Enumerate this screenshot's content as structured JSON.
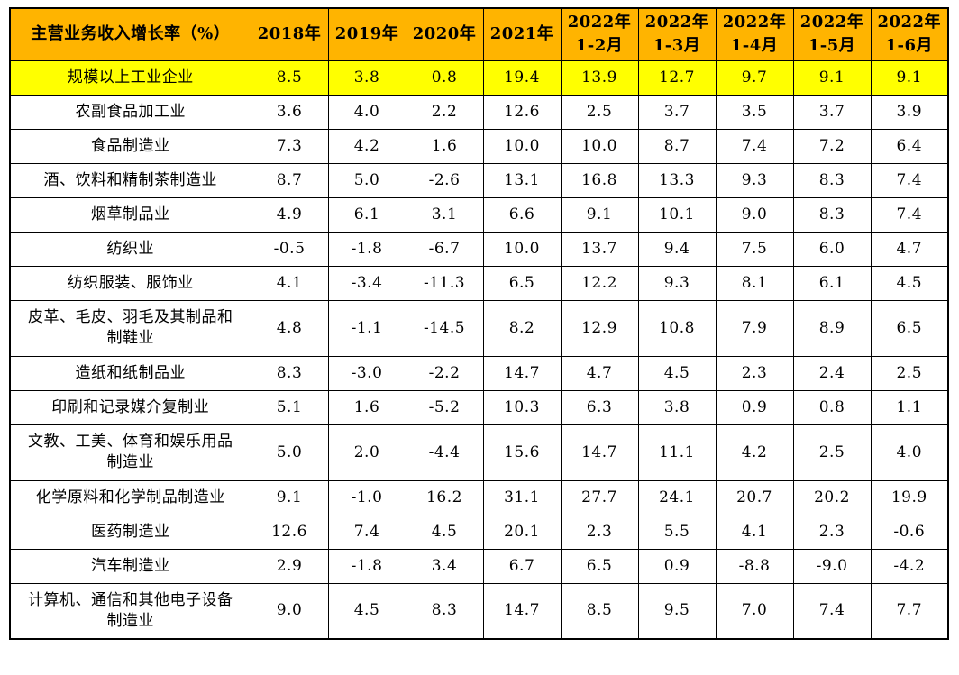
{
  "colors": {
    "header_bg": "#FFB400",
    "highlight_bg": "#FFFF00",
    "border": "#000000",
    "text": "#000000",
    "page_bg": "#FFFFFF"
  },
  "chart_data": {
    "type": "table",
    "title": "主营业务收入增长率（%）",
    "columns": [
      {
        "line1": "2018年",
        "line2": ""
      },
      {
        "line1": "2019年",
        "line2": ""
      },
      {
        "line1": "2020年",
        "line2": ""
      },
      {
        "line1": "2021年",
        "line2": ""
      },
      {
        "line1": "2022年",
        "line2": "1-2月"
      },
      {
        "line1": "2022年",
        "line2": "1-3月"
      },
      {
        "line1": "2022年",
        "line2": "1-4月"
      },
      {
        "line1": "2022年",
        "line2": "1-5月"
      },
      {
        "line1": "2022年",
        "line2": "1-6月"
      }
    ],
    "rows": [
      {
        "label": "规模以上工业企业",
        "highlight": true,
        "tall": false,
        "values": [
          "8.5",
          "3.8",
          "0.8",
          "19.4",
          "13.9",
          "12.7",
          "9.7",
          "9.1",
          "9.1"
        ]
      },
      {
        "label": "农副食品加工业",
        "highlight": false,
        "tall": false,
        "values": [
          "3.6",
          "4.0",
          "2.2",
          "12.6",
          "2.5",
          "3.7",
          "3.5",
          "3.7",
          "3.9"
        ]
      },
      {
        "label": "食品制造业",
        "highlight": false,
        "tall": false,
        "values": [
          "7.3",
          "4.2",
          "1.6",
          "10.0",
          "10.0",
          "8.7",
          "7.4",
          "7.2",
          "6.4"
        ]
      },
      {
        "label": "酒、饮料和精制茶制造业",
        "highlight": false,
        "tall": false,
        "values": [
          "8.7",
          "5.0",
          "-2.6",
          "13.1",
          "16.8",
          "13.3",
          "9.3",
          "8.3",
          "7.4"
        ]
      },
      {
        "label": "烟草制品业",
        "highlight": false,
        "tall": false,
        "values": [
          "4.9",
          "6.1",
          "3.1",
          "6.6",
          "9.1",
          "10.1",
          "9.0",
          "8.3",
          "7.4"
        ]
      },
      {
        "label": "纺织业",
        "highlight": false,
        "tall": false,
        "values": [
          "-0.5",
          "-1.8",
          "-6.7",
          "10.0",
          "13.7",
          "9.4",
          "7.5",
          "6.0",
          "4.7"
        ]
      },
      {
        "label": "纺织服装、服饰业",
        "highlight": false,
        "tall": false,
        "values": [
          "4.1",
          "-3.4",
          "-11.3",
          "6.5",
          "12.2",
          "9.3",
          "8.1",
          "6.1",
          "4.5"
        ]
      },
      {
        "label": "皮革、毛皮、羽毛及其制品和\n制鞋业",
        "highlight": false,
        "tall": true,
        "values": [
          "4.8",
          "-1.1",
          "-14.5",
          "8.2",
          "12.9",
          "10.8",
          "7.9",
          "8.9",
          "6.5"
        ]
      },
      {
        "label": "造纸和纸制品业",
        "highlight": false,
        "tall": false,
        "values": [
          "8.3",
          "-3.0",
          "-2.2",
          "14.7",
          "4.7",
          "4.5",
          "2.3",
          "2.4",
          "2.5"
        ]
      },
      {
        "label": "印刷和记录媒介复制业",
        "highlight": false,
        "tall": false,
        "values": [
          "5.1",
          "1.6",
          "-5.2",
          "10.3",
          "6.3",
          "3.8",
          "0.9",
          "0.8",
          "1.1"
        ]
      },
      {
        "label": "文教、工美、体育和娱乐用品\n制造业",
        "highlight": false,
        "tall": true,
        "values": [
          "5.0",
          "2.0",
          "-4.4",
          "15.6",
          "14.7",
          "11.1",
          "4.2",
          "2.5",
          "4.0"
        ]
      },
      {
        "label": "化学原料和化学制品制造业",
        "highlight": false,
        "tall": false,
        "values": [
          "9.1",
          "-1.0",
          "16.2",
          "31.1",
          "27.7",
          "24.1",
          "20.7",
          "20.2",
          "19.9"
        ]
      },
      {
        "label": "医药制造业",
        "highlight": false,
        "tall": false,
        "values": [
          "12.6",
          "7.4",
          "4.5",
          "20.1",
          "2.3",
          "5.5",
          "4.1",
          "2.3",
          "-0.6"
        ]
      },
      {
        "label": "汽车制造业",
        "highlight": false,
        "tall": false,
        "values": [
          "2.9",
          "-1.8",
          "3.4",
          "6.7",
          "6.5",
          "0.9",
          "-8.8",
          "-9.0",
          "-4.2"
        ]
      },
      {
        "label": "计算机、通信和其他电子设备\n制造业",
        "highlight": false,
        "tall": true,
        "values": [
          "9.0",
          "4.5",
          "8.3",
          "14.7",
          "8.5",
          "9.5",
          "7.0",
          "7.4",
          "7.7"
        ]
      }
    ]
  }
}
